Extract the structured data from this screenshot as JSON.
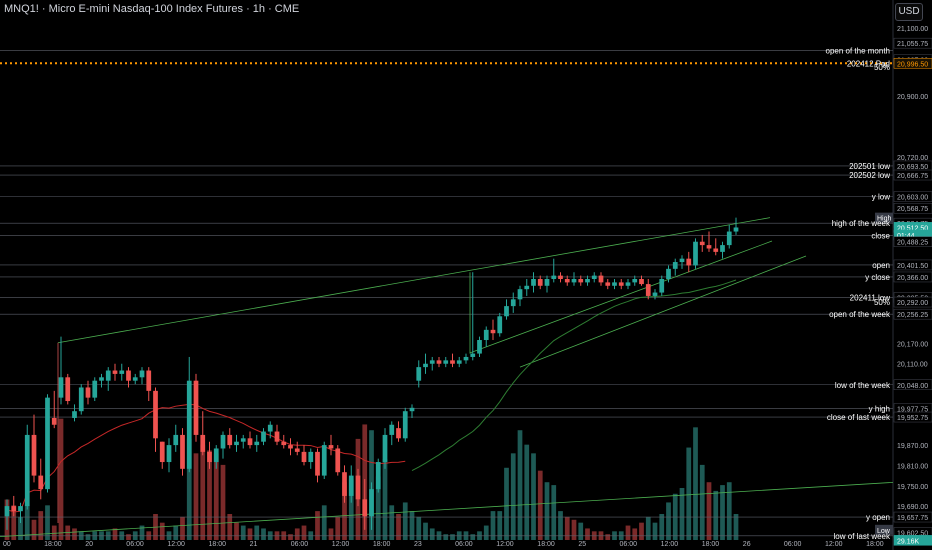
{
  "header": {
    "title": "MNQ1! · Micro E-mini Nasdaq-100 Index Futures · 1h · CME",
    "currency": "USD"
  },
  "colors": {
    "background": "#000000",
    "up": "#26a69a",
    "down": "#ef5350",
    "volume_up": "#1e5a55",
    "volume_down": "#7a2a2a",
    "level_line": "#5d606b",
    "orange_dotted": "#ff9800",
    "trendline": "#4caf50",
    "ma_red": "#c62828",
    "ma_green": "#2e7d32",
    "label_text": "#ffffff",
    "axis_text": "#b2b5be"
  },
  "chart_data": {
    "type": "candlestick",
    "symbol": "MNQ1!",
    "timeframe": "1h",
    "ylim": [
      19590,
      21130
    ],
    "y_ticks": [
      21100,
      20900,
      20720,
      20170,
      20110,
      19870,
      19810,
      19750,
      19690
    ],
    "x_ticks": [
      "00",
      "18:00",
      "20",
      "06:00",
      "12:00",
      "18:00",
      "21",
      "06:00",
      "12:00",
      "18:00",
      "23",
      "06:00",
      "12:00",
      "18:00",
      "25",
      "06:00",
      "12:00",
      "18:00",
      "26",
      "06:00",
      "12:00",
      "18:00"
    ],
    "price_scale_labels": [
      {
        "text": "21,055.75",
        "price": 21055.75
      },
      {
        "text": "21,007.00",
        "price": 21007
      },
      {
        "text": "20,996.50",
        "price": 20996.5,
        "style": "orange"
      },
      {
        "text": "20,693.50",
        "price": 20693.5
      },
      {
        "text": "20,666.75",
        "price": 20666.75
      },
      {
        "text": "20,603.00",
        "price": 20603
      },
      {
        "text": "20,568.75",
        "price": 20568.75
      },
      {
        "text": "20,524.75",
        "price": 20524.75
      },
      {
        "text": "20,512.50",
        "price": 20512.5,
        "style": "current"
      },
      {
        "text": "01:44",
        "price": 20490,
        "style": "current-sub"
      },
      {
        "text": "20,488.25",
        "price": 20470
      },
      {
        "text": "20,401.50",
        "price": 20401.5
      },
      {
        "text": "20,366.00",
        "price": 20366
      },
      {
        "text": "20,305.50",
        "price": 20305.5
      },
      {
        "text": "20,292.00",
        "price": 20292
      },
      {
        "text": "20,256.25",
        "price": 20256.25
      },
      {
        "text": "20,048.00",
        "price": 20048
      },
      {
        "text": "19,977.75",
        "price": 19977.75
      },
      {
        "text": "19,952.75",
        "price": 19952.75
      },
      {
        "text": "19,657.75",
        "price": 19657.75
      },
      {
        "text": "19,602.50",
        "price": 19612
      },
      {
        "text": "29.16K",
        "price": 19589,
        "style": "green"
      }
    ],
    "levels": [
      {
        "label": "open of the month",
        "price": 21034,
        "dotted": false
      },
      {
        "label": "202412 Pad",
        "price": 20996.5,
        "dotted": true,
        "orange": true
      },
      {
        "label": "50%",
        "price": 20985,
        "no_line": true
      },
      {
        "label": "202501 low",
        "price": 20693.5
      },
      {
        "label": "202502 low",
        "price": 20666.75
      },
      {
        "label": "y low",
        "price": 20603
      },
      {
        "label": "High",
        "price": 20541,
        "badge": true
      },
      {
        "label": "high of the week",
        "price": 20524.75
      },
      {
        "label": "close",
        "price": 20488.25
      },
      {
        "label": "open",
        "price": 20401.5
      },
      {
        "label": "y close",
        "price": 20366
      },
      {
        "label": "202411 low",
        "price": 20305.5
      },
      {
        "label": "50%",
        "price": 20292,
        "no_line": true
      },
      {
        "label": "open of the week",
        "price": 20256.25
      },
      {
        "label": "low of the week",
        "price": 20048
      },
      {
        "label": "y high",
        "price": 19977.75
      },
      {
        "label": "close of last week",
        "price": 19952.75
      },
      {
        "label": "y open",
        "price": 19657.75
      },
      {
        "label": "Low",
        "price": 19620,
        "badge": true
      },
      {
        "label": "low of last week",
        "price": 19602.5
      }
    ],
    "candles": [
      [
        19660,
        19710,
        19620,
        19690
      ],
      [
        19690,
        19720,
        19660,
        19675
      ],
      [
        19675,
        19700,
        19640,
        19690
      ],
      [
        19690,
        19930,
        19680,
        19900
      ],
      [
        19900,
        19960,
        19760,
        19780
      ],
      [
        19780,
        19830,
        19710,
        19740
      ],
      [
        19740,
        20020,
        19730,
        20010
      ],
      [
        19950,
        20030,
        19920,
        19930
      ],
      [
        20010,
        20190,
        19990,
        20070
      ],
      [
        20070,
        20080,
        19990,
        20000
      ],
      [
        19950,
        19990,
        19940,
        19970
      ],
      [
        19970,
        20050,
        19960,
        20040
      ],
      [
        20040,
        20060,
        19990,
        20010
      ],
      [
        20010,
        20070,
        20000,
        20060
      ],
      [
        20060,
        20080,
        20040,
        20070
      ],
      [
        20060,
        20100,
        20030,
        20090
      ],
      [
        20090,
        20110,
        20060,
        20080
      ],
      [
        20080,
        20110,
        20060,
        20090
      ],
      [
        20090,
        20100,
        20040,
        20060
      ],
      [
        20060,
        20080,
        20050,
        20070
      ],
      [
        20070,
        20100,
        20050,
        20090
      ],
      [
        20090,
        20100,
        20000,
        20030
      ],
      [
        20030,
        20040,
        19850,
        19890
      ],
      [
        19880,
        19880,
        19800,
        19820
      ],
      [
        19820,
        19890,
        19790,
        19870
      ],
      [
        19870,
        19930,
        19850,
        19900
      ],
      [
        19900,
        19920,
        19780,
        19800
      ],
      [
        19800,
        20130,
        19790,
        20060
      ],
      [
        20060,
        20080,
        19880,
        19900
      ],
      [
        19900,
        19970,
        19840,
        19850
      ],
      [
        19850,
        19880,
        19800,
        19820
      ],
      [
        19820,
        19870,
        19800,
        19860
      ],
      [
        19860,
        19910,
        19830,
        19900
      ],
      [
        19900,
        19920,
        19860,
        19870
      ],
      [
        19870,
        19900,
        19850,
        19880
      ],
      [
        19880,
        19900,
        19860,
        19890
      ],
      [
        19890,
        19910,
        19860,
        19870
      ],
      [
        19870,
        19900,
        19850,
        19880
      ],
      [
        19880,
        19920,
        19870,
        19910
      ],
      [
        19910,
        19940,
        19890,
        19930
      ],
      [
        19910,
        19930,
        19870,
        19880
      ],
      [
        19880,
        19900,
        19860,
        19870
      ],
      [
        19870,
        19890,
        19840,
        19860
      ],
      [
        19860,
        19880,
        19840,
        19850
      ],
      [
        19850,
        19870,
        19810,
        19820
      ],
      [
        19820,
        19860,
        19800,
        19850
      ],
      [
        19850,
        19860,
        19760,
        19780
      ],
      [
        19780,
        19880,
        19770,
        19870
      ],
      [
        19870,
        19900,
        19840,
        19860
      ],
      [
        19860,
        19870,
        19780,
        19790
      ],
      [
        19790,
        19810,
        19700,
        19720
      ],
      [
        19720,
        19810,
        19700,
        19780
      ],
      [
        19780,
        19800,
        19690,
        19710
      ],
      [
        19710,
        19770,
        19620,
        19660
      ],
      [
        19660,
        19760,
        19620,
        19740
      ],
      [
        19740,
        19830,
        19730,
        19820
      ],
      [
        19820,
        19920,
        19800,
        19900
      ],
      [
        19900,
        19940,
        19870,
        19930
      ],
      [
        19920,
        19940,
        19880,
        19890
      ],
      [
        19890,
        19980,
        19880,
        19970
      ],
      [
        19970,
        19990,
        19950,
        19980
      ],
      [
        20060,
        20120,
        20040,
        20100
      ],
      [
        20100,
        20140,
        20080,
        20110
      ],
      [
        20110,
        20130,
        20090,
        20120
      ],
      [
        20120,
        20130,
        20100,
        20110
      ],
      [
        20110,
        20130,
        20100,
        20120
      ],
      [
        20120,
        20140,
        20100,
        20110
      ],
      [
        20110,
        20130,
        20100,
        20120
      ],
      [
        20120,
        20140,
        20110,
        20130
      ],
      [
        20130,
        20380,
        20120,
        20140
      ],
      [
        20140,
        20190,
        20130,
        20180
      ],
      [
        20180,
        20220,
        20160,
        20210
      ],
      [
        20210,
        20240,
        20180,
        20200
      ],
      [
        20200,
        20260,
        20190,
        20250
      ],
      [
        20250,
        20300,
        20240,
        20280
      ],
      [
        20280,
        20320,
        20260,
        20300
      ],
      [
        20300,
        20340,
        20280,
        20330
      ],
      [
        20330,
        20360,
        20310,
        20340
      ],
      [
        20340,
        20380,
        20320,
        20360
      ],
      [
        20360,
        20370,
        20330,
        20340
      ],
      [
        20340,
        20370,
        20320,
        20360
      ],
      [
        20360,
        20420,
        20350,
        20370
      ],
      [
        20370,
        20380,
        20350,
        20360
      ],
      [
        20360,
        20370,
        20340,
        20350
      ],
      [
        20350,
        20380,
        20340,
        20360
      ],
      [
        20360,
        20370,
        20340,
        20350
      ],
      [
        20350,
        20370,
        20340,
        20360
      ],
      [
        20360,
        20380,
        20350,
        20370
      ],
      [
        20370,
        20380,
        20340,
        20350
      ],
      [
        20350,
        20360,
        20330,
        20340
      ],
      [
        20340,
        20360,
        20330,
        20350
      ],
      [
        20350,
        20360,
        20330,
        20340
      ],
      [
        20340,
        20360,
        20330,
        20350
      ],
      [
        20350,
        20370,
        20340,
        20360
      ],
      [
        20360,
        20370,
        20340,
        20345
      ],
      [
        20345,
        20360,
        20300,
        20310
      ],
      [
        20310,
        20330,
        20300,
        20320
      ],
      [
        20320,
        20370,
        20310,
        20360
      ],
      [
        20360,
        20400,
        20350,
        20390
      ],
      [
        20390,
        20420,
        20370,
        20410
      ],
      [
        20410,
        20430,
        20390,
        20420
      ],
      [
        20420,
        20440,
        20380,
        20400
      ],
      [
        20400,
        20480,
        20390,
        20470
      ],
      [
        20470,
        20490,
        20440,
        20460
      ],
      [
        20460,
        20500,
        20440,
        20450
      ],
      [
        20450,
        20480,
        20430,
        20440
      ],
      [
        20440,
        20470,
        20420,
        20460
      ],
      [
        20460,
        20520,
        20450,
        20500
      ],
      [
        20500,
        20541,
        20490,
        20512
      ]
    ],
    "volumes": [
      [
        14,
        0
      ],
      [
        12,
        0
      ],
      [
        8,
        1
      ],
      [
        12,
        1
      ],
      [
        7,
        0
      ],
      [
        10,
        0
      ],
      [
        12,
        1
      ],
      [
        5,
        0
      ],
      [
        42,
        0
      ],
      [
        5,
        0
      ],
      [
        4,
        0
      ],
      [
        3,
        1
      ],
      [
        2,
        1
      ],
      [
        3,
        1
      ],
      [
        3,
        1
      ],
      [
        3,
        1
      ],
      [
        4,
        0
      ],
      [
        3,
        1
      ],
      [
        2,
        0
      ],
      [
        3,
        1
      ],
      [
        5,
        1
      ],
      [
        3,
        0
      ],
      [
        9,
        0
      ],
      [
        6,
        0
      ],
      [
        3,
        1
      ],
      [
        5,
        1
      ],
      [
        8,
        0
      ],
      [
        35,
        1
      ],
      [
        30,
        0
      ],
      [
        33,
        0
      ],
      [
        31,
        0
      ],
      [
        30,
        0
      ],
      [
        26,
        0
      ],
      [
        9,
        0
      ],
      [
        6,
        0
      ],
      [
        5,
        1
      ],
      [
        4,
        0
      ],
      [
        5,
        1
      ],
      [
        4,
        1
      ],
      [
        3,
        1
      ],
      [
        3,
        0
      ],
      [
        3,
        0
      ],
      [
        2,
        0
      ],
      [
        4,
        0
      ],
      [
        5,
        0
      ],
      [
        3,
        1
      ],
      [
        10,
        0
      ],
      [
        12,
        1
      ],
      [
        4,
        0
      ],
      [
        8,
        0
      ],
      [
        20,
        0
      ],
      [
        21,
        1
      ],
      [
        35,
        0
      ],
      [
        40,
        0
      ],
      [
        38,
        1
      ],
      [
        22,
        1
      ],
      [
        28,
        1
      ],
      [
        12,
        1
      ],
      [
        9,
        0
      ],
      [
        13,
        1
      ],
      [
        10,
        1
      ],
      [
        8,
        1
      ],
      [
        6,
        1
      ],
      [
        4,
        1
      ],
      [
        3,
        1
      ],
      [
        2,
        1
      ],
      [
        2,
        1
      ],
      [
        3,
        1
      ],
      [
        3,
        1
      ],
      [
        2,
        1
      ],
      [
        3,
        1
      ],
      [
        5,
        1
      ],
      [
        10,
        1
      ],
      [
        10,
        1
      ],
      [
        25,
        1
      ],
      [
        30,
        1
      ],
      [
        38,
        1
      ],
      [
        33,
        1
      ],
      [
        30,
        1
      ],
      [
        24,
        0
      ],
      [
        20,
        1
      ],
      [
        19,
        1
      ],
      [
        10,
        1
      ],
      [
        8,
        0
      ],
      [
        7,
        0
      ],
      [
        6,
        1
      ],
      [
        4,
        0
      ],
      [
        3,
        0
      ],
      [
        3,
        0
      ],
      [
        2,
        0
      ],
      [
        3,
        1
      ],
      [
        3,
        1
      ],
      [
        5,
        0
      ],
      [
        4,
        0
      ],
      [
        6,
        0
      ],
      [
        8,
        1
      ],
      [
        6,
        1
      ],
      [
        9,
        1
      ],
      [
        13,
        1
      ],
      [
        16,
        1
      ],
      [
        18,
        1
      ],
      [
        32,
        1
      ],
      [
        39,
        1
      ],
      [
        26,
        1
      ],
      [
        20,
        0
      ],
      [
        17,
        1
      ],
      [
        19,
        1
      ],
      [
        20,
        1
      ],
      [
        9,
        1
      ]
    ]
  }
}
